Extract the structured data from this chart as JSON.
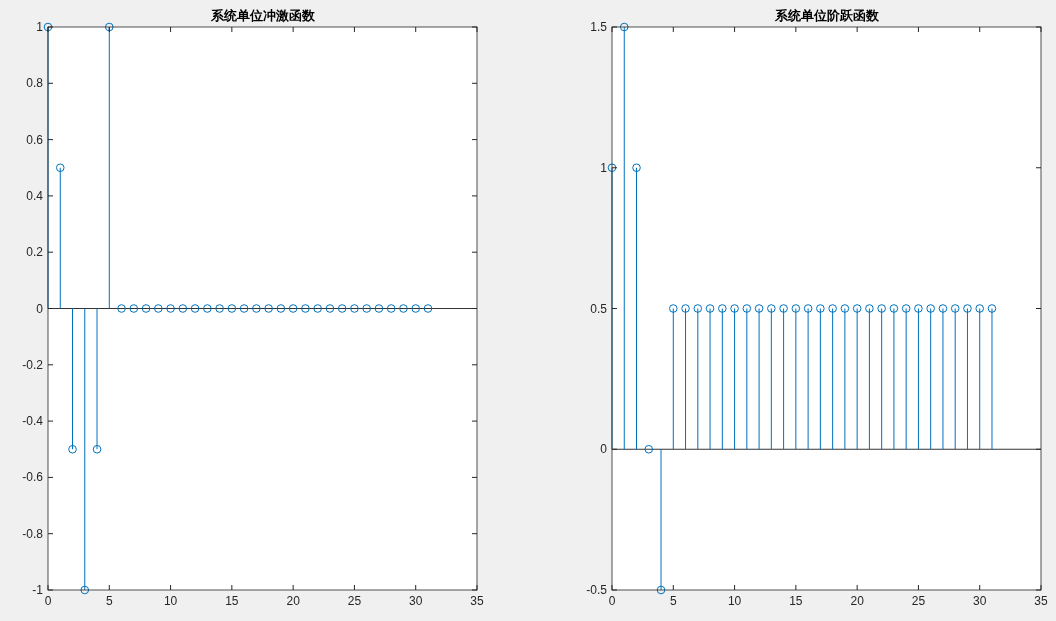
{
  "chart_data": [
    {
      "type": "lollipop",
      "title": "系统单位冲激函数",
      "x": [
        0,
        1,
        2,
        3,
        4,
        5,
        6,
        7,
        8,
        9,
        10,
        11,
        12,
        13,
        14,
        15,
        16,
        17,
        18,
        19,
        20,
        21,
        22,
        23,
        24,
        25,
        26,
        27,
        28,
        29,
        30,
        31
      ],
      "series": [
        {
          "color": "#0072bd",
          "values": [
            1,
            0.5,
            -0.5,
            -1,
            -0.5,
            1,
            0,
            0,
            0,
            0,
            0,
            0,
            0,
            0,
            0,
            0,
            0,
            0,
            0,
            0,
            0,
            0,
            0,
            0,
            0,
            0,
            0,
            0,
            0,
            0,
            0,
            0
          ]
        }
      ],
      "xlim": [
        0,
        35
      ],
      "xticks": [
        0,
        5,
        10,
        15,
        20,
        25,
        30,
        35
      ],
      "ylim": [
        -1,
        1
      ],
      "yticks": [
        -1,
        -0.8,
        -0.6,
        -0.4,
        -0.2,
        0,
        0.2,
        0.4,
        0.6,
        0.8,
        1
      ],
      "marker": "circle"
    },
    {
      "type": "lollipop",
      "title": "系统单位阶跃函数",
      "x": [
        0,
        1,
        2,
        3,
        4,
        5,
        6,
        7,
        8,
        9,
        10,
        11,
        12,
        13,
        14,
        15,
        16,
        17,
        18,
        19,
        20,
        21,
        22,
        23,
        24,
        25,
        26,
        27,
        28,
        29,
        30,
        31
      ],
      "series": [
        {
          "color": "#0072bd",
          "values": [
            1,
            1.5,
            1,
            0,
            -0.5,
            0.5,
            0.5,
            0.5,
            0.5,
            0.5,
            0.5,
            0.5,
            0.5,
            0.5,
            0.5,
            0.5,
            0.5,
            0.5,
            0.5,
            0.5,
            0.5,
            0.5,
            0.5,
            0.5,
            0.5,
            0.5,
            0.5,
            0.5,
            0.5,
            0.5,
            0.5,
            0.5
          ]
        }
      ],
      "xlim": [
        0,
        35
      ],
      "xticks": [
        0,
        5,
        10,
        15,
        20,
        25,
        30,
        35
      ],
      "ylim": [
        -0.5,
        1.5
      ],
      "yticks": [
        -0.5,
        0,
        0.5,
        1,
        1.5
      ],
      "marker": "circle"
    }
  ]
}
